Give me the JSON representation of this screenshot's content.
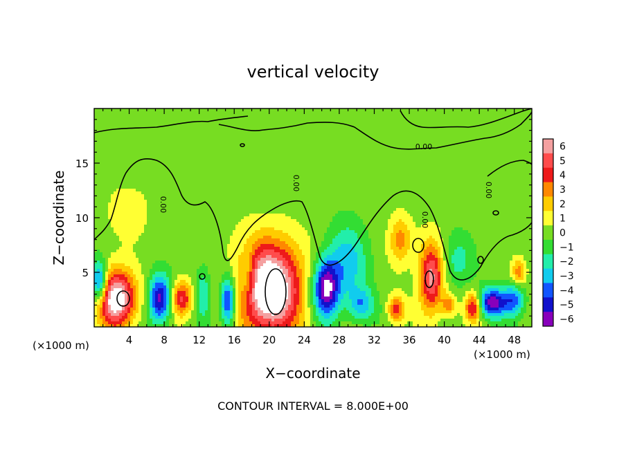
{
  "chart_data": {
    "type": "heatmap",
    "title": "vertical velocity",
    "xlabel": "X−coordinate",
    "ylabel": "Z−coordinate",
    "xunit_left": "(×1000 m)",
    "xunit_right": "(×1000 m)",
    "footer": "CONTOUR INTERVAL = 8.000E+00",
    "xlim": [
      0,
      50
    ],
    "ylim": [
      0,
      20
    ],
    "xticks": [
      4,
      8,
      12,
      16,
      20,
      24,
      28,
      32,
      36,
      40,
      44,
      48
    ],
    "xtick_labels": [
      "4",
      "8",
      "12",
      "16",
      "20",
      "24",
      "28",
      "32",
      "36",
      "40",
      "44",
      "48"
    ],
    "yticks": [
      5,
      10,
      15
    ],
    "ytick_labels": [
      "5",
      "10",
      "15"
    ],
    "contour_label": "0.00",
    "colorbar": {
      "levels": [
        6,
        5,
        4,
        3,
        2,
        1,
        0,
        -1,
        -2,
        -3,
        -4,
        -5,
        -6
      ],
      "labels": [
        "6",
        "5",
        "4",
        "3",
        "2",
        "1",
        "0",
        "−1",
        "−2",
        "−3",
        "−4",
        "−5",
        "−6"
      ],
      "colors": [
        "#f4a0a0",
        "#ff4c4c",
        "#ee1a1a",
        "#ff8800",
        "#ffcc00",
        "#ffff33",
        "#77dd22",
        "#33dd33",
        "#22eeaa",
        "#11ccee",
        "#1155ff",
        "#1111cc",
        "#8800bb"
      ]
    },
    "features": [
      {
        "kind": "updraft",
        "x": 20,
        "z": 3.5,
        "rx": 3.6,
        "rz": 4.2,
        "w": 9
      },
      {
        "kind": "updraft",
        "x": 2.5,
        "z": 2.6,
        "rx": 2.2,
        "rz": 2.6,
        "w": 8
      },
      {
        "kind": "updraft",
        "x": 38.5,
        "z": 4.5,
        "rx": 1.4,
        "rz": 3.2,
        "w": 6
      },
      {
        "kind": "updraft",
        "x": 35,
        "z": 8,
        "rx": 1.3,
        "rz": 2.2,
        "w": 3
      },
      {
        "kind": "updraft",
        "x": 10,
        "z": 2.6,
        "rx": 1.2,
        "rz": 1.6,
        "w": 5
      },
      {
        "kind": "updraft",
        "x": 34.5,
        "z": 1.6,
        "rx": 0.9,
        "rz": 1.2,
        "w": 4
      },
      {
        "kind": "updraft",
        "x": 43.3,
        "z": 1.8,
        "rx": 0.9,
        "rz": 1.3,
        "w": 5
      },
      {
        "kind": "updraft",
        "x": 40.5,
        "z": 2,
        "rx": 0.8,
        "rz": 1,
        "w": 3
      },
      {
        "kind": "updraft",
        "x": 48.5,
        "z": 5,
        "rx": 0.8,
        "rz": 1.2,
        "w": 3
      },
      {
        "kind": "updraft",
        "x": 4,
        "z": 10.5,
        "rx": 2.5,
        "rz": 2.5,
        "w": 1.2
      },
      {
        "kind": "downdraft",
        "x": 26.5,
        "z": 3.5,
        "rx": 1.5,
        "rz": 2.6,
        "w": -7
      },
      {
        "kind": "downdraft",
        "x": 29,
        "z": 6,
        "rx": 2.2,
        "rz": 3.5,
        "w": -3
      },
      {
        "kind": "downdraft",
        "x": 7.5,
        "z": 2.6,
        "rx": 1.3,
        "rz": 2.2,
        "w": -6
      },
      {
        "kind": "downdraft",
        "x": 15.3,
        "z": 2.4,
        "rx": 0.9,
        "rz": 2.4,
        "w": -6
      },
      {
        "kind": "downdraft",
        "x": 45.5,
        "z": 2.2,
        "rx": 1.6,
        "rz": 1.3,
        "w": -6
      },
      {
        "kind": "downdraft",
        "x": 0.6,
        "z": 4,
        "rx": 0.9,
        "rz": 2,
        "w": -6
      },
      {
        "kind": "downdraft",
        "x": 30.5,
        "z": 2,
        "rx": 1.5,
        "rz": 1.5,
        "w": -3
      },
      {
        "kind": "downdraft",
        "x": 48,
        "z": 2.5,
        "rx": 1.2,
        "rz": 1.5,
        "w": -4
      },
      {
        "kind": "downdraft",
        "x": 41.5,
        "z": 6,
        "rx": 1.8,
        "rz": 2.5,
        "w": -2
      },
      {
        "kind": "downdraft",
        "x": 12.5,
        "z": 3,
        "rx": 0.9,
        "rz": 2.5,
        "w": -2.5
      },
      {
        "kind": "downdraft",
        "x": 17.5,
        "z": 4.5,
        "rx": 1,
        "rz": 2.5,
        "w": -2.5
      }
    ]
  }
}
